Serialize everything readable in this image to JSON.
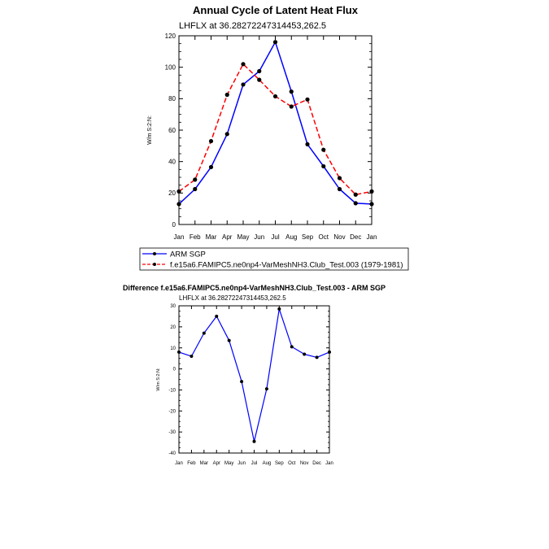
{
  "chart_data": [
    {
      "type": "line",
      "title": "Annual Cycle of Latent Heat Flux",
      "subtitle": "LHFLX at 36.28272247314453,262.5",
      "ylabel": "W/m S:2:N:",
      "xlabel": "",
      "categories": [
        "Jan",
        "Feb",
        "Mar",
        "Apr",
        "May",
        "Jun",
        "Jul",
        "Aug",
        "Sep",
        "Oct",
        "Nov",
        "Dec",
        "Jan"
      ],
      "ylim": [
        0,
        120
      ],
      "yticks": [
        "0",
        "20",
        "40",
        "60",
        "80",
        "100",
        "120"
      ],
      "grid": false,
      "legend": "below",
      "series": [
        {
          "name": "ARM SGP",
          "color": "#0000ff",
          "dash": "solid",
          "values": [
            13.0,
            22.5,
            36.5,
            57.5,
            89.0,
            97.5,
            116.0,
            84.5,
            51.0,
            37.0,
            22.5,
            13.5,
            13.0
          ]
        },
        {
          "name": "f.e15a6.FAMIPC5.ne0np4-VarMeshNH3.Club_Test.003 (1979-1981)",
          "color": "#ff0000",
          "dash": "dashed",
          "values": [
            21.0,
            28.5,
            53.0,
            82.5,
            102.0,
            92.0,
            81.5,
            75.0,
            79.5,
            47.5,
            29.5,
            19.0,
            21.0
          ]
        }
      ]
    },
    {
      "type": "line",
      "title": "Difference f.e15a6.FAMIPC5.ne0np4-VarMeshNH3.Club_Test.003 - ARM SGP",
      "subtitle": "LHFLX at 36.28272247314453,262.5",
      "ylabel": "W/m S:2:N:",
      "xlabel": "",
      "categories": [
        "Jan",
        "Feb",
        "Mar",
        "Apr",
        "May",
        "Jun",
        "Jul",
        "Aug",
        "Sep",
        "Oct",
        "Nov",
        "Dec",
        "Jan"
      ],
      "ylim": [
        -40,
        30
      ],
      "yticks": [
        "-40",
        "-30",
        "-20",
        "-10",
        "0",
        "10",
        "20",
        "30"
      ],
      "grid": false,
      "series": [
        {
          "name": "difference",
          "color": "#0000ff",
          "dash": "solid",
          "values": [
            8.0,
            6.0,
            17.0,
            25.0,
            13.5,
            -6.0,
            -34.5,
            -9.5,
            28.5,
            10.5,
            7.0,
            5.5,
            8.0
          ]
        }
      ]
    }
  ]
}
